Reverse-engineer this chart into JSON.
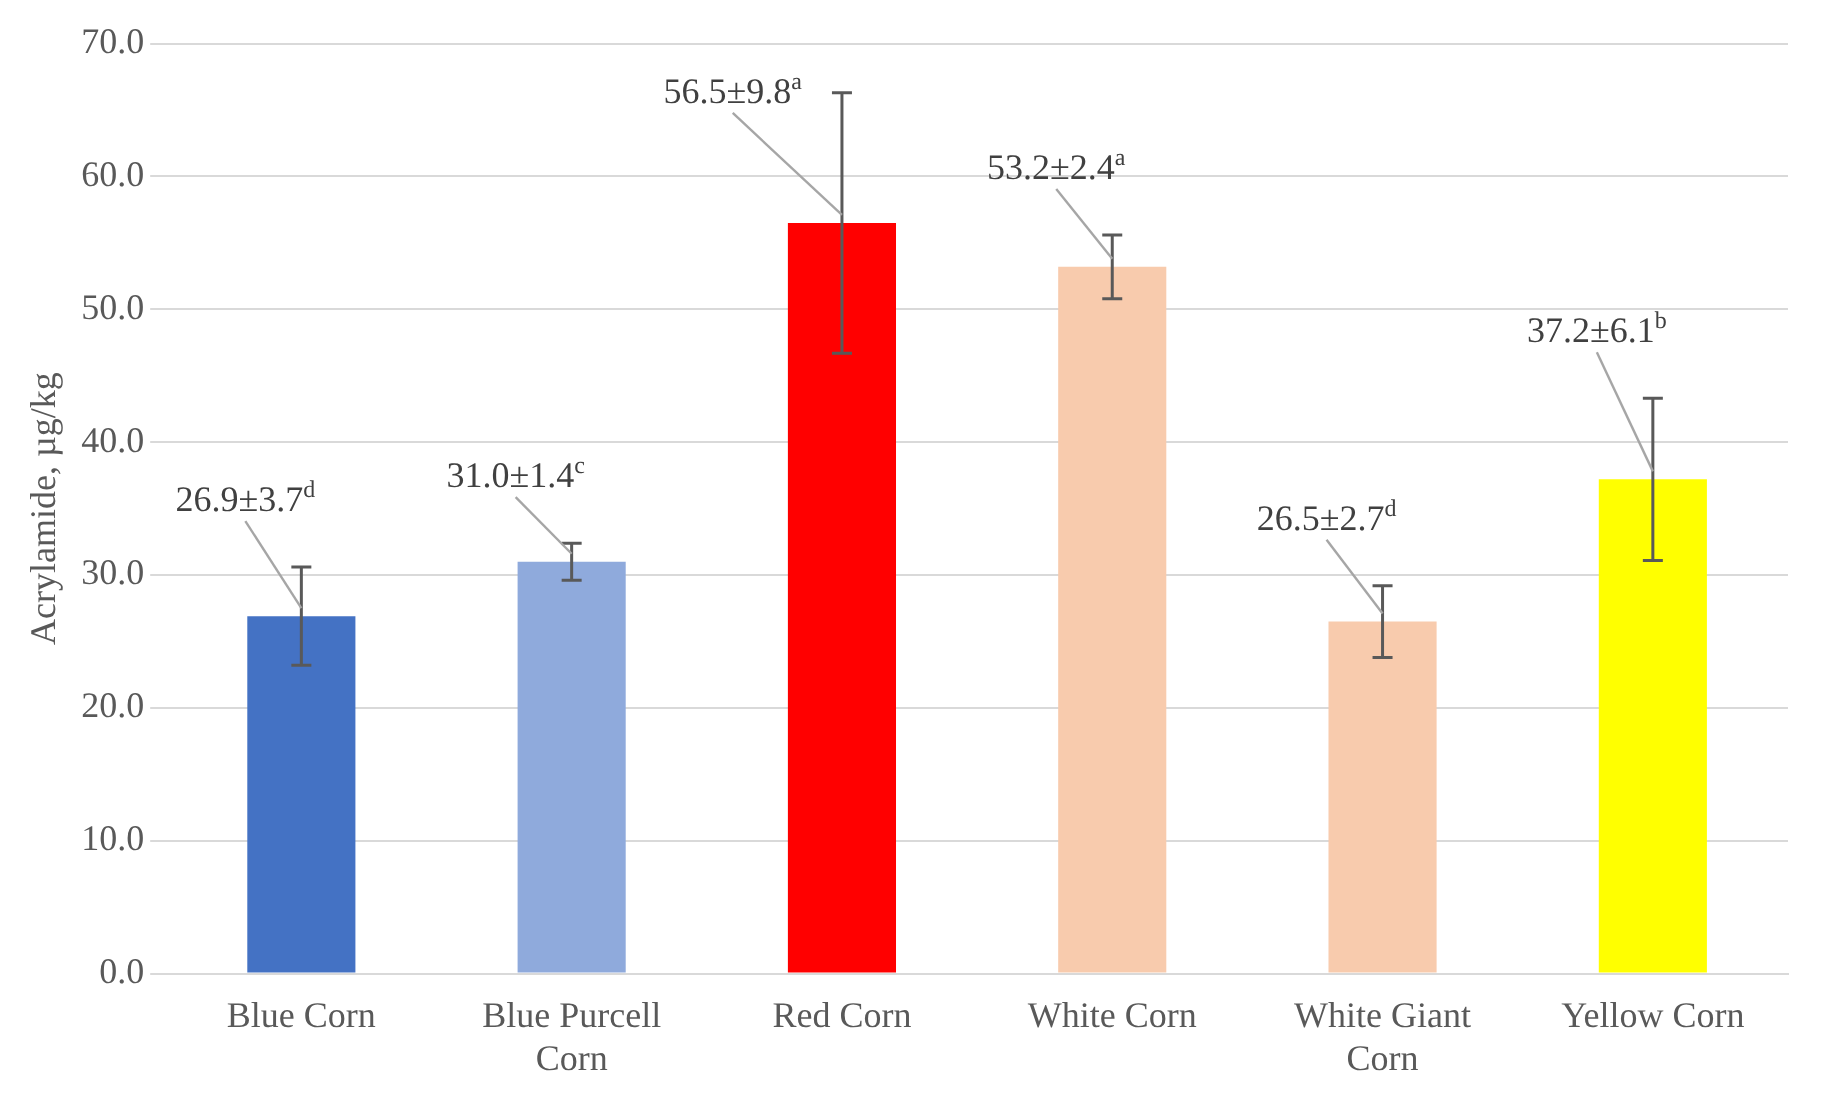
{
  "chart_data": {
    "type": "bar",
    "ylabel": "Acrylamide, µg/kg",
    "categories": [
      "Blue Corn",
      "Blue Purcell Corn",
      "Red Corn",
      "White Corn",
      "White Giant Corn",
      "Yellow Corn"
    ],
    "values": [
      26.9,
      31.0,
      56.5,
      53.2,
      26.5,
      37.2
    ],
    "errors": [
      3.7,
      1.4,
      9.8,
      2.4,
      2.7,
      6.1
    ],
    "colors": [
      "#4472c4",
      "#8faadc",
      "#ff0000",
      "#f8cbad",
      "#f8cbad",
      "#ffff00"
    ],
    "value_labels": [
      "26.9±3.7$^{d}$",
      "31.0±1.4$^{c}$",
      "56.5±9.8$^{a}$",
      "53.2±2.4$^{a}$",
      "26.5±2.7$^{d}$",
      "37.2±6.1$^{b}$"
    ],
    "ylim": [
      0,
      70
    ],
    "yticks": [
      {
        "value": 0,
        "label": "0.0"
      },
      {
        "value": 10,
        "label": "10.0"
      },
      {
        "value": 20,
        "label": "20.0"
      },
      {
        "value": 30,
        "label": "30.0"
      },
      {
        "value": 40,
        "label": "40.0"
      },
      {
        "value": 50,
        "label": "50.0"
      },
      {
        "value": 60,
        "label": "60.0"
      },
      {
        "value": 70,
        "label": "70.0"
      }
    ],
    "grid": "y",
    "legend": false
  }
}
